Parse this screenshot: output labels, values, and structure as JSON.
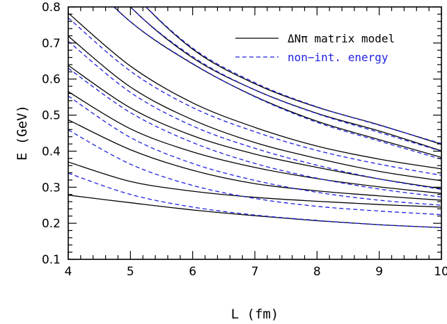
{
  "chart_data": {
    "type": "line",
    "xlabel": "L (fm)",
    "ylabel": "E (GeV)",
    "xlim": [
      4,
      10
    ],
    "ylim": [
      0.1,
      0.8
    ],
    "x_ticks": [
      "4",
      "5",
      "6",
      "7",
      "8",
      "9",
      "10"
    ],
    "y_ticks": [
      "0.1",
      "0.2",
      "0.3",
      "0.4",
      "0.5",
      "0.6",
      "0.7",
      "0.8"
    ],
    "grid": false,
    "legend_position": "top-right",
    "legend": [
      {
        "label": "ΔNπ matrix model",
        "style": "solid",
        "color": "#000000"
      },
      {
        "label": "non−int. energy",
        "style": "dashed",
        "color": "#1f1fe0"
      }
    ],
    "x": [
      4,
      5,
      6,
      7,
      8,
      9,
      10
    ],
    "series": [
      {
        "style": "solid",
        "color": "#000000",
        "values": [
          0.278,
          0.257,
          0.237,
          0.221,
          0.207,
          0.196,
          0.188
        ]
      },
      {
        "style": "solid",
        "color": "#000000",
        "values": [
          0.37,
          0.316,
          0.289,
          0.272,
          0.261,
          0.252,
          0.245
        ]
      },
      {
        "style": "solid",
        "color": "#000000",
        "values": [
          0.487,
          0.404,
          0.347,
          0.31,
          0.29,
          0.276,
          0.264
        ]
      },
      {
        "style": "solid",
        "color": "#000000",
        "values": [
          0.565,
          0.462,
          0.398,
          0.355,
          0.324,
          0.301,
          0.283
        ]
      },
      {
        "style": "solid",
        "color": "#000000",
        "values": [
          0.638,
          0.52,
          0.443,
          0.392,
          0.355,
          0.323,
          0.296
        ]
      },
      {
        "style": "solid",
        "color": "#000000",
        "values": [
          0.719,
          0.578,
          0.487,
          0.424,
          0.38,
          0.344,
          0.318
        ]
      },
      {
        "style": "solid",
        "color": "#000000",
        "values": [
          0.783,
          0.636,
          0.534,
          0.466,
          0.414,
          0.378,
          0.351
        ]
      },
      {
        "style": "solid",
        "color": "#000000",
        "values": [
          0.93,
          0.759,
          0.642,
          0.552,
          0.483,
          0.432,
          0.383
        ]
      },
      {
        "style": "solid",
        "color": "#000000",
        "values": [
          1.0,
          0.8,
          0.659,
          0.57,
          0.505,
          0.456,
          0.401
        ]
      },
      {
        "style": "solid",
        "color": "#000000",
        "values": [
          1.05,
          0.845,
          0.683,
          0.587,
          0.522,
          0.473,
          0.419
        ]
      },
      {
        "style": "dashed",
        "color": "#1f1fe0",
        "values": [
          0.339,
          0.28,
          0.245,
          0.223,
          0.208,
          0.196,
          0.188
        ]
      },
      {
        "style": "dashed",
        "color": "#1f1fe0",
        "values": [
          0.459,
          0.364,
          0.305,
          0.269,
          0.247,
          0.234,
          0.224
        ]
      },
      {
        "style": "dashed",
        "color": "#1f1fe0",
        "values": [
          0.553,
          0.438,
          0.366,
          0.319,
          0.286,
          0.264,
          0.25
        ]
      },
      {
        "style": "dashed",
        "color": "#1f1fe0",
        "values": [
          0.63,
          0.507,
          0.424,
          0.366,
          0.325,
          0.295,
          0.273
        ]
      },
      {
        "style": "dashed",
        "color": "#1f1fe0",
        "values": [
          0.705,
          0.563,
          0.47,
          0.408,
          0.361,
          0.323,
          0.294
        ]
      },
      {
        "style": "dashed",
        "color": "#1f1fe0",
        "values": [
          0.77,
          0.622,
          0.521,
          0.454,
          0.402,
          0.364,
          0.333
        ]
      },
      {
        "style": "dashed",
        "color": "#1f1fe0",
        "values": [
          0.925,
          0.759,
          0.643,
          0.551,
          0.48,
          0.428,
          0.378
        ]
      },
      {
        "style": "dashed",
        "color": "#1f1fe0",
        "values": [
          1.0,
          0.8,
          0.662,
          0.57,
          0.504,
          0.452,
          0.4
        ]
      },
      {
        "style": "dashed",
        "color": "#1f1fe0",
        "values": [
          1.05,
          0.845,
          0.686,
          0.59,
          0.523,
          0.472,
          0.421
        ]
      }
    ]
  }
}
